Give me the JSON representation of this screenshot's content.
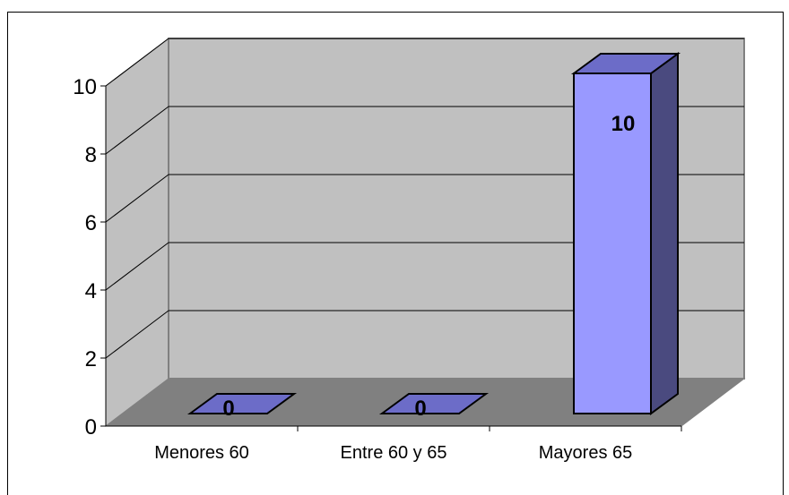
{
  "chart_data": {
    "type": "bar",
    "categories": [
      "Menores 60",
      "Entre 60 y 65",
      "Mayores 65"
    ],
    "values": [
      0,
      0,
      10
    ],
    "data_labels": [
      "0",
      "0",
      "10"
    ],
    "yticks": [
      "0",
      "2",
      "4",
      "6",
      "8",
      "10"
    ],
    "ylim": [
      0,
      10
    ],
    "grid": true,
    "three_d": true,
    "colors": {
      "bar_front": "#9999ff",
      "bar_side": "#4a4a7f",
      "bar_top": "#6c6cc8",
      "wall_back": "#c0c0c0",
      "wall_side": "#c0c0c0",
      "floor": "#808080",
      "grid": "#000000"
    }
  }
}
